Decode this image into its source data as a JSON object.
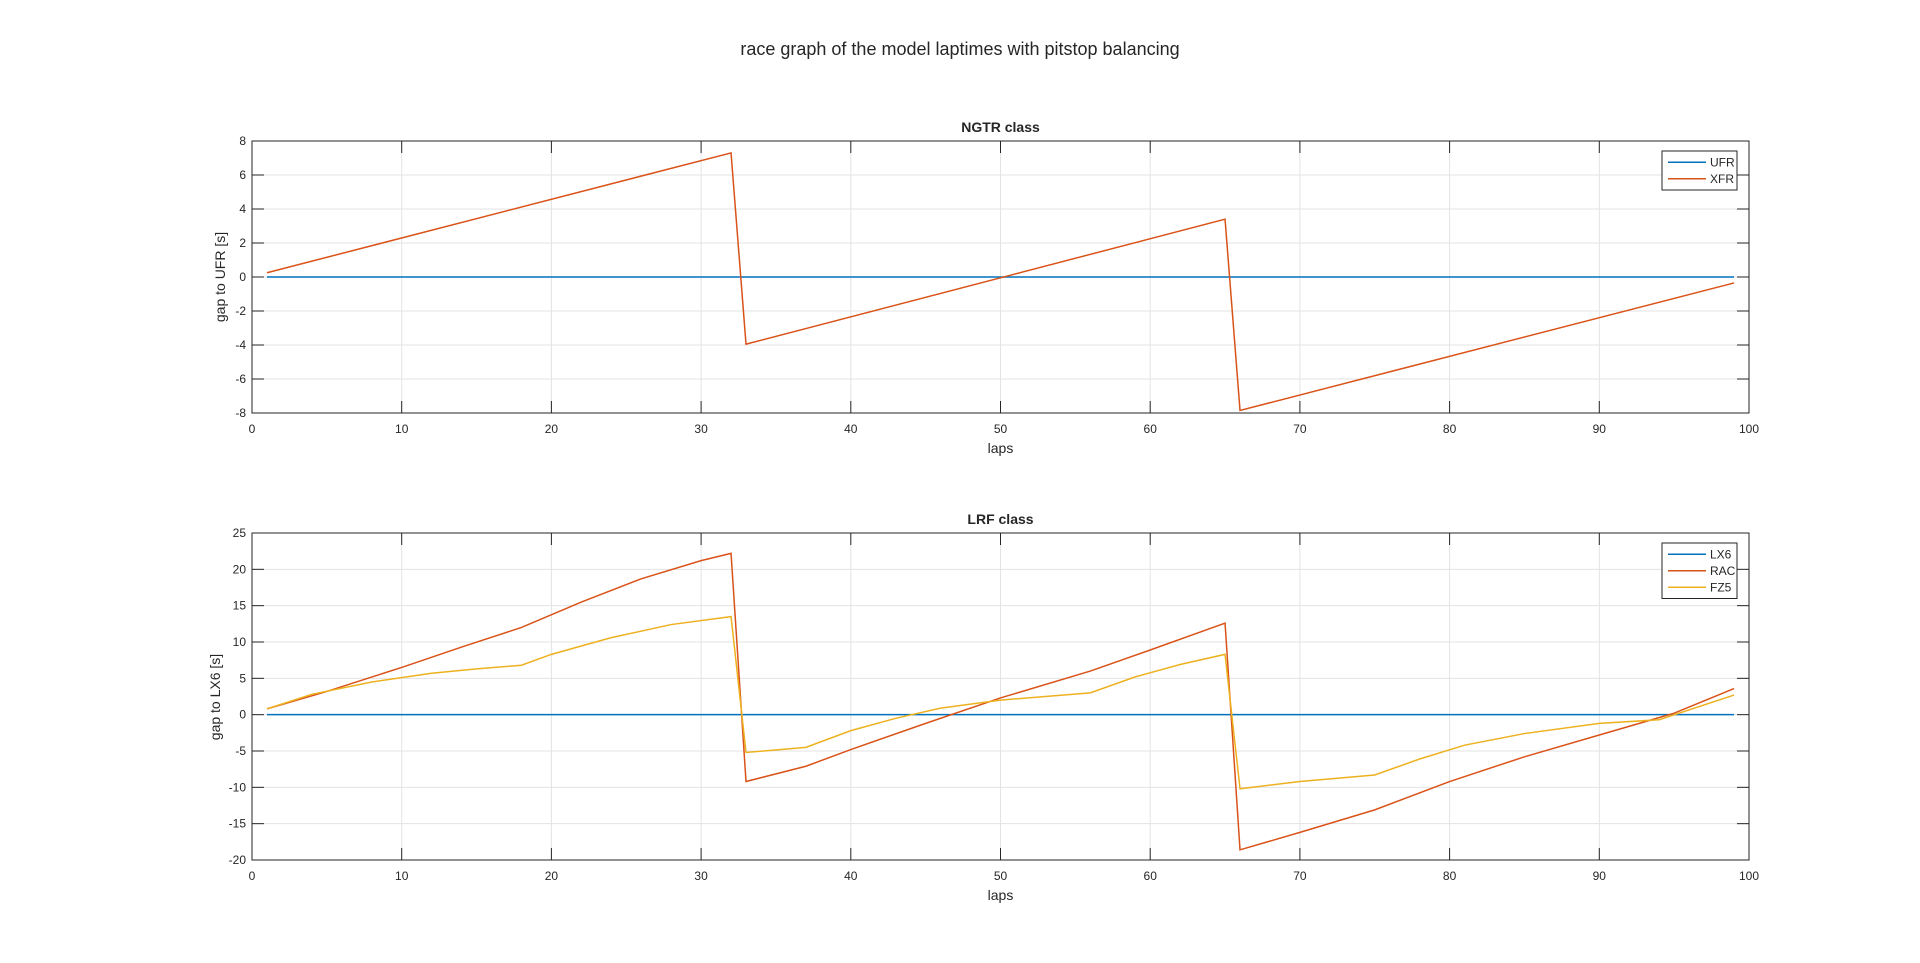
{
  "figure": {
    "title": "race graph of the model laptimes with pitstop balancing"
  },
  "chart_data": [
    {
      "type": "line",
      "title": "NGTR class",
      "xlabel": "laps",
      "ylabel": "gap to UFR [s]",
      "xlim": [
        0,
        100
      ],
      "ylim": [
        -8,
        8
      ],
      "xticks": [
        0,
        10,
        20,
        30,
        40,
        50,
        60,
        70,
        80,
        90,
        100
      ],
      "yticks": [
        -8,
        -6,
        -4,
        -2,
        0,
        2,
        4,
        6,
        8
      ],
      "grid": true,
      "legend_position": "top-right",
      "series": [
        {
          "name": "UFR",
          "color": "#0072BD",
          "points": [
            [
              1,
              0
            ],
            [
              99,
              0
            ]
          ]
        },
        {
          "name": "XFR",
          "color": "#D95319",
          "points": [
            [
              1,
              0.25
            ],
            [
              32,
              7.3
            ],
            [
              33,
              -3.95
            ],
            [
              65,
              3.4
            ],
            [
              66,
              -7.85
            ],
            [
              99,
              -0.35
            ]
          ]
        }
      ]
    },
    {
      "type": "line",
      "title": "LRF class",
      "xlabel": "laps",
      "ylabel": "gap to LX6 [s]",
      "xlim": [
        0,
        100
      ],
      "ylim": [
        -20,
        25
      ],
      "xticks": [
        0,
        10,
        20,
        30,
        40,
        50,
        60,
        70,
        80,
        90,
        100
      ],
      "yticks": [
        -20,
        -15,
        -10,
        -5,
        0,
        5,
        10,
        15,
        20,
        25
      ],
      "grid": true,
      "legend_position": "top-right",
      "series": [
        {
          "name": "LX6",
          "color": "#0072BD",
          "points": [
            [
              1,
              0
            ],
            [
              99,
              0
            ]
          ]
        },
        {
          "name": "RAC",
          "color": "#D95319",
          "points": [
            [
              1,
              0.8
            ],
            [
              5,
              3.2
            ],
            [
              10,
              6.5
            ],
            [
              14,
              9.3
            ],
            [
              18,
              12.0
            ],
            [
              22,
              15.5
            ],
            [
              26,
              18.7
            ],
            [
              30,
              21.2
            ],
            [
              32,
              22.2
            ],
            [
              33,
              -9.2
            ],
            [
              37,
              -7.1
            ],
            [
              40,
              -4.8
            ],
            [
              45,
              -1.2
            ],
            [
              50,
              2.3
            ],
            [
              56,
              6.0
            ],
            [
              60,
              8.9
            ],
            [
              65,
              12.6
            ],
            [
              66,
              -18.6
            ],
            [
              70,
              -16.2
            ],
            [
              75,
              -13.1
            ],
            [
              80,
              -9.2
            ],
            [
              85,
              -5.8
            ],
            [
              90,
              -2.8
            ],
            [
              95,
              0.2
            ],
            [
              99,
              3.6
            ]
          ]
        },
        {
          "name": "FZ5",
          "color": "#EDB120",
          "points": [
            [
              1,
              0.8
            ],
            [
              4,
              2.8
            ],
            [
              8,
              4.5
            ],
            [
              12,
              5.7
            ],
            [
              15,
              6.3
            ],
            [
              18,
              6.8
            ],
            [
              20,
              8.3
            ],
            [
              24,
              10.6
            ],
            [
              28,
              12.4
            ],
            [
              32,
              13.5
            ],
            [
              33,
              -5.2
            ],
            [
              37,
              -4.5
            ],
            [
              40,
              -2.2
            ],
            [
              43,
              -0.5
            ],
            [
              46,
              0.9
            ],
            [
              50,
              2.0
            ],
            [
              53,
              2.5
            ],
            [
              56,
              3.0
            ],
            [
              59,
              5.2
            ],
            [
              62,
              6.9
            ],
            [
              65,
              8.3
            ],
            [
              66,
              -10.2
            ],
            [
              70,
              -9.2
            ],
            [
              75,
              -8.3
            ],
            [
              78,
              -6.1
            ],
            [
              81,
              -4.2
            ],
            [
              85,
              -2.6
            ],
            [
              90,
              -1.2
            ],
            [
              94,
              -0.7
            ],
            [
              99,
              2.7
            ]
          ]
        }
      ]
    }
  ]
}
